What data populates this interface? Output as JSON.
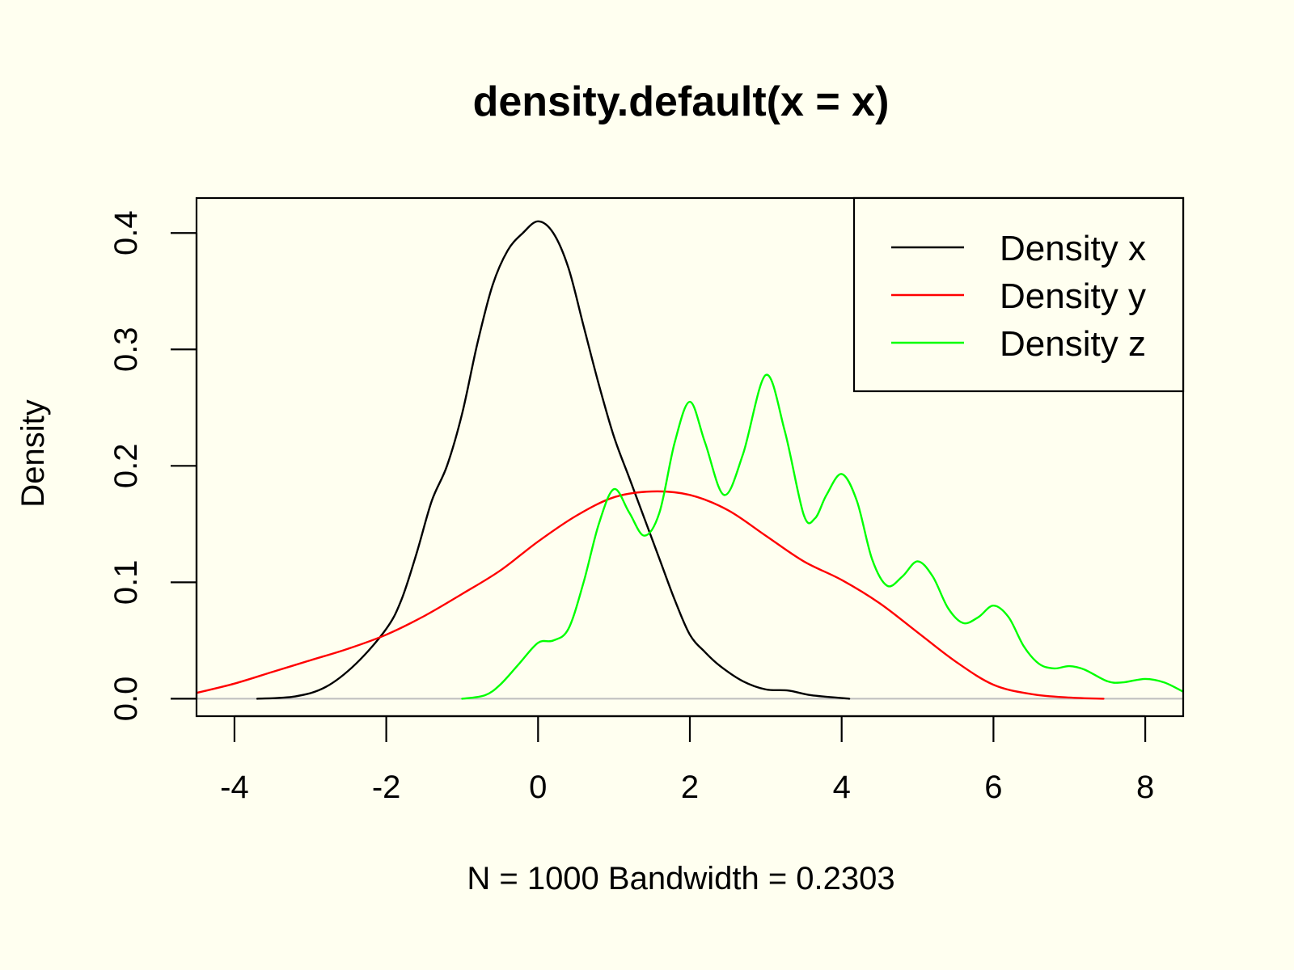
{
  "chart_data": {
    "type": "line",
    "title": "density.default(x = x)",
    "xlabel": "N = 1000   Bandwidth = 0.2303",
    "ylabel": "Density",
    "xlim": [
      -4.5,
      8.5
    ],
    "ylim": [
      -0.015,
      0.43
    ],
    "x_ticks": [
      -4,
      -2,
      0,
      2,
      4,
      6,
      8
    ],
    "x_tick_labels": [
      "-4",
      "-2",
      "0",
      "2",
      "4",
      "6",
      "8"
    ],
    "y_ticks": [
      0.0,
      0.1,
      0.2,
      0.3,
      0.4
    ],
    "y_tick_labels": [
      "0.0",
      "0.1",
      "0.2",
      "0.3",
      "0.4"
    ],
    "baseline": {
      "y": 0,
      "color": "#BEBEBE"
    },
    "legend": {
      "position": "top-right",
      "entries": [
        {
          "label": "Density x",
          "color": "#000000"
        },
        {
          "label": "Density y",
          "color": "#FF0000"
        },
        {
          "label": "Density z",
          "color": "#00FF00"
        }
      ]
    },
    "series": [
      {
        "name": "Density x",
        "color": "#000000",
        "points": [
          [
            -3.7,
            0.0
          ],
          [
            -3.2,
            0.002
          ],
          [
            -2.8,
            0.01
          ],
          [
            -2.4,
            0.03
          ],
          [
            -2.0,
            0.06
          ],
          [
            -1.8,
            0.085
          ],
          [
            -1.6,
            0.125
          ],
          [
            -1.4,
            0.17
          ],
          [
            -1.2,
            0.2
          ],
          [
            -1.0,
            0.245
          ],
          [
            -0.8,
            0.305
          ],
          [
            -0.6,
            0.355
          ],
          [
            -0.4,
            0.385
          ],
          [
            -0.2,
            0.4
          ],
          [
            0.0,
            0.41
          ],
          [
            0.2,
            0.4
          ],
          [
            0.4,
            0.37
          ],
          [
            0.6,
            0.32
          ],
          [
            0.8,
            0.27
          ],
          [
            1.0,
            0.225
          ],
          [
            1.2,
            0.19
          ],
          [
            1.4,
            0.155
          ],
          [
            1.6,
            0.12
          ],
          [
            1.8,
            0.085
          ],
          [
            2.0,
            0.055
          ],
          [
            2.2,
            0.04
          ],
          [
            2.4,
            0.028
          ],
          [
            2.7,
            0.015
          ],
          [
            3.0,
            0.008
          ],
          [
            3.3,
            0.007
          ],
          [
            3.6,
            0.003
          ],
          [
            4.1,
            0.0
          ]
        ]
      },
      {
        "name": "Density y",
        "color": "#FF0000",
        "points": [
          [
            -4.5,
            0.005
          ],
          [
            -4.0,
            0.013
          ],
          [
            -3.5,
            0.023
          ],
          [
            -3.0,
            0.033
          ],
          [
            -2.5,
            0.043
          ],
          [
            -2.0,
            0.055
          ],
          [
            -1.5,
            0.071
          ],
          [
            -1.0,
            0.09
          ],
          [
            -0.5,
            0.11
          ],
          [
            0.0,
            0.135
          ],
          [
            0.5,
            0.157
          ],
          [
            1.0,
            0.173
          ],
          [
            1.5,
            0.178
          ],
          [
            2.0,
            0.175
          ],
          [
            2.5,
            0.162
          ],
          [
            3.0,
            0.14
          ],
          [
            3.5,
            0.118
          ],
          [
            4.0,
            0.102
          ],
          [
            4.5,
            0.082
          ],
          [
            5.0,
            0.057
          ],
          [
            5.5,
            0.032
          ],
          [
            6.0,
            0.012
          ],
          [
            6.5,
            0.004
          ],
          [
            7.0,
            0.001
          ],
          [
            7.45,
            0.0
          ]
        ]
      },
      {
        "name": "Density z",
        "color": "#00FF00",
        "points": [
          [
            -1.0,
            0.0
          ],
          [
            -0.7,
            0.003
          ],
          [
            -0.5,
            0.012
          ],
          [
            -0.25,
            0.03
          ],
          [
            0.0,
            0.048
          ],
          [
            0.2,
            0.05
          ],
          [
            0.4,
            0.06
          ],
          [
            0.6,
            0.1
          ],
          [
            0.8,
            0.15
          ],
          [
            1.0,
            0.18
          ],
          [
            1.2,
            0.16
          ],
          [
            1.4,
            0.14
          ],
          [
            1.6,
            0.16
          ],
          [
            1.8,
            0.22
          ],
          [
            2.0,
            0.255
          ],
          [
            2.2,
            0.22
          ],
          [
            2.45,
            0.175
          ],
          [
            2.7,
            0.21
          ],
          [
            3.0,
            0.278
          ],
          [
            3.25,
            0.23
          ],
          [
            3.5,
            0.158
          ],
          [
            3.65,
            0.155
          ],
          [
            3.8,
            0.175
          ],
          [
            4.0,
            0.193
          ],
          [
            4.2,
            0.17
          ],
          [
            4.4,
            0.12
          ],
          [
            4.6,
            0.097
          ],
          [
            4.8,
            0.105
          ],
          [
            5.0,
            0.118
          ],
          [
            5.2,
            0.105
          ],
          [
            5.4,
            0.078
          ],
          [
            5.6,
            0.065
          ],
          [
            5.8,
            0.07
          ],
          [
            6.0,
            0.08
          ],
          [
            6.2,
            0.07
          ],
          [
            6.4,
            0.045
          ],
          [
            6.6,
            0.03
          ],
          [
            6.8,
            0.026
          ],
          [
            7.0,
            0.028
          ],
          [
            7.2,
            0.025
          ],
          [
            7.5,
            0.015
          ],
          [
            7.7,
            0.014
          ],
          [
            8.0,
            0.017
          ],
          [
            8.25,
            0.014
          ],
          [
            8.5,
            0.006
          ]
        ]
      }
    ]
  }
}
